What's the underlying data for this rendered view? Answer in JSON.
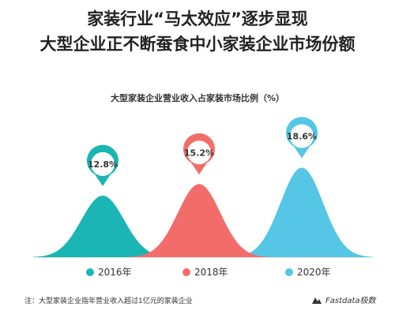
{
  "header": {
    "title_line1": "家装行业“马太效应”逐步显现",
    "title_line2": "大型企业正不断蚕食中小家装企业市场份额"
  },
  "chart_data": {
    "type": "area",
    "title": "大型家装企业营业收入占家装市场比例（%）",
    "categories": [
      "2016年",
      "2018年",
      "2020年"
    ],
    "values": [
      12.8,
      15.2,
      18.6
    ],
    "value_labels": [
      "12.8%",
      "15.2%",
      "18.6%"
    ],
    "ylim": [
      0,
      20
    ],
    "legend": "bottom",
    "colors": [
      "#1bb5b5",
      "#f26d6a",
      "#55c6e5"
    ],
    "grid": false
  },
  "footer": {
    "note": "注：大型家装企业指年营业收入超过1亿元的家装企业",
    "brand": "Fastdata极数"
  }
}
